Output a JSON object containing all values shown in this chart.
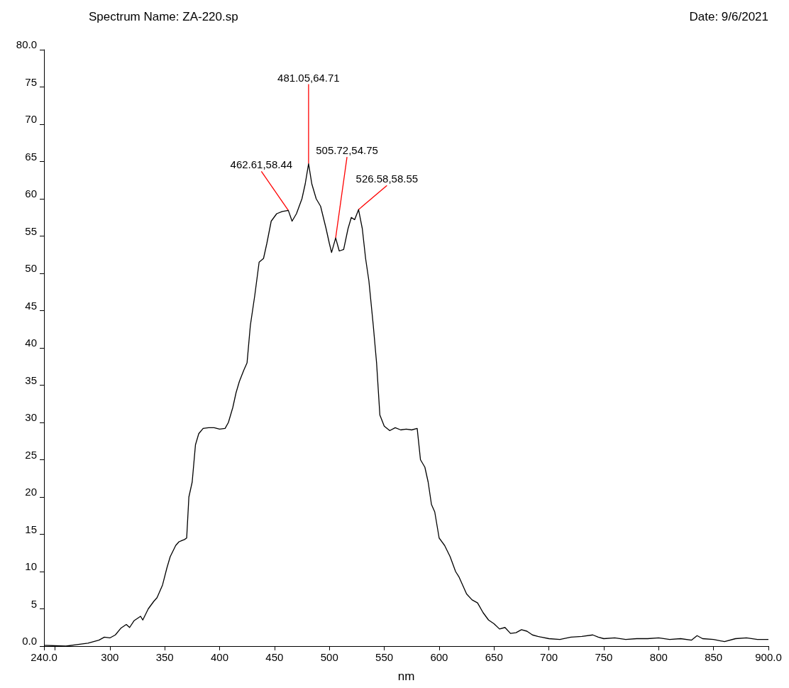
{
  "chart_data": {
    "type": "line",
    "title": "Spectrum Name: ZA-220.sp",
    "subtitle": "Date: 9/6/2021",
    "xlabel": "nm",
    "grid": false,
    "marker": "none",
    "line_style": "solid",
    "xlim": [
      240,
      900
    ],
    "ylim": [
      0,
      80
    ],
    "xticks": [
      {
        "value": 240,
        "label": "240.0"
      },
      {
        "value": 250,
        "label": null
      },
      300,
      350,
      400,
      450,
      500,
      550,
      600,
      650,
      700,
      750,
      800,
      850,
      {
        "value": 900,
        "label": "900.0"
      }
    ],
    "yticks": [
      {
        "value": 0,
        "label": "0.0"
      },
      5,
      10,
      15,
      20,
      25,
      30,
      35,
      40,
      45,
      50,
      55,
      60,
      65,
      70,
      75,
      {
        "value": 80,
        "label": "80.0"
      }
    ],
    "annotations": [
      {
        "text": "462.61,58.44",
        "x": 462.61,
        "y": 58.44
      },
      {
        "text": "481.05,64.71",
        "x": 481.05,
        "y": 64.71
      },
      {
        "text": "505.72,54.75",
        "x": 505.72,
        "y": 54.75
      },
      {
        "text": "526.58,58.55",
        "x": 526.58,
        "y": 58.55
      }
    ],
    "series": [
      {
        "color": "#000000",
        "x": [
          240,
          260,
          270,
          280,
          290,
          295,
          300,
          305,
          310,
          315,
          318,
          322,
          328,
          330,
          335,
          340,
          343,
          348,
          352,
          355,
          360,
          363,
          368,
          370,
          372,
          375,
          378,
          381,
          385,
          390,
          395,
          400,
          405,
          408,
          412,
          415,
          418,
          422,
          425,
          428,
          432,
          436,
          440,
          443,
          447,
          452,
          457,
          462.61,
          466,
          470,
          475,
          478,
          481.05,
          484,
          488,
          492,
          497,
          500,
          502,
          505.72,
          509,
          513,
          517,
          520,
          523,
          526.58,
          530,
          533,
          536,
          540,
          543,
          546,
          550,
          555,
          560,
          565,
          570,
          575,
          580,
          583,
          587,
          590,
          593,
          596,
          600,
          605,
          610,
          615,
          618,
          625,
          630,
          635,
          640,
          645,
          650,
          655,
          660,
          665,
          670,
          675,
          680,
          685,
          690,
          700,
          710,
          720,
          730,
          740,
          745,
          750,
          760,
          770,
          780,
          790,
          800,
          810,
          820,
          830,
          835,
          840,
          850,
          860,
          870,
          880,
          890,
          900
        ],
        "values": [
          0.1,
          0,
          0.2,
          0.4,
          0.8,
          1.2,
          1.1,
          1.5,
          2.4,
          2.9,
          2.5,
          3.4,
          4.0,
          3.5,
          5,
          6,
          6.5,
          8.2,
          10.5,
          12,
          13.5,
          14,
          14.3,
          14.5,
          20,
          22,
          27,
          28.5,
          29.2,
          29.3,
          29.3,
          29.1,
          29.2,
          30,
          32,
          34,
          35.5,
          37,
          38,
          43,
          47,
          51.5,
          52,
          54,
          57,
          58,
          58.3,
          58.44,
          57,
          58,
          60,
          62,
          64.71,
          62,
          60,
          59,
          56,
          54,
          52.8,
          54.75,
          53,
          53.2,
          56,
          57.5,
          57.2,
          58.55,
          56,
          52,
          49,
          43,
          38,
          31,
          29.5,
          28.9,
          29.3,
          29.0,
          29.1,
          29,
          29.2,
          25,
          24,
          22,
          19,
          18,
          14.5,
          13.5,
          12,
          10,
          9.3,
          7,
          6.2,
          5.8,
          4.5,
          3.5,
          3,
          2.3,
          2.5,
          1.7,
          1.8,
          2.2,
          2.0,
          1.5,
          1.3,
          1.0,
          0.9,
          1.2,
          1.3,
          1.5,
          1.2,
          1.0,
          1.1,
          0.9,
          1.0,
          1.0,
          1.1,
          0.9,
          1.0,
          0.8,
          1.4,
          1.0,
          0.9,
          0.6,
          1.0,
          1.1,
          0.9,
          0.9
        ]
      }
    ]
  }
}
